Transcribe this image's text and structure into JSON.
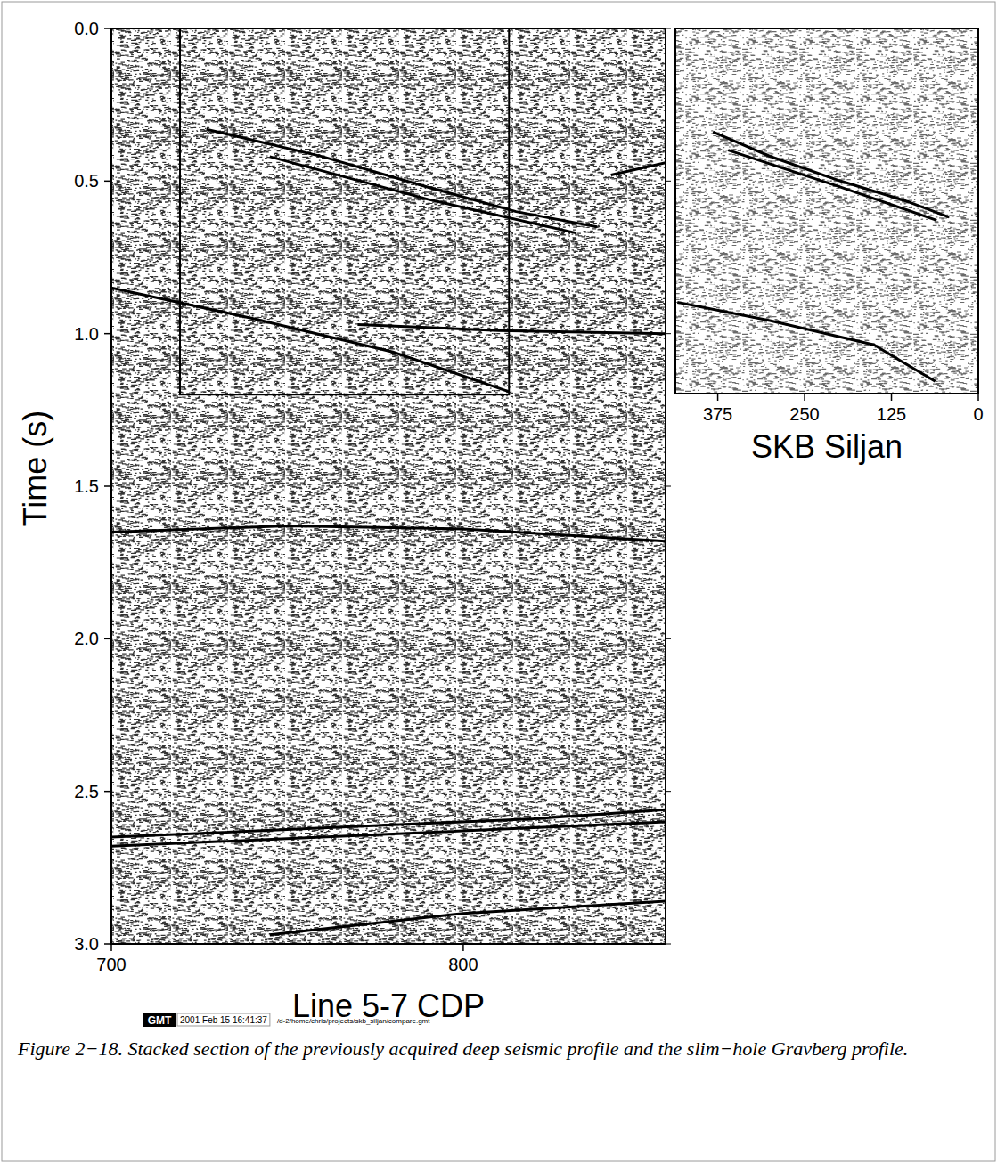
{
  "chart_data": [
    {
      "type": "line",
      "xlabel": "Line 5-7 CDP",
      "ylabel": "Time (s)",
      "xlim": [
        700,
        857.5
      ],
      "ylim": [
        3.0,
        0
      ],
      "xticks": [
        700,
        800
      ],
      "yticks": [
        {
          "value": 0,
          "label": "0.0"
        },
        {
          "value": 0.5,
          "label": "0.5"
        },
        {
          "value": 1,
          "label": "1.0"
        },
        {
          "value": 1.5,
          "label": "1.5"
        },
        {
          "value": 2,
          "label": "2.0"
        },
        {
          "value": 2.5,
          "label": "2.5"
        },
        {
          "value": 3,
          "label": "3.0"
        }
      ],
      "inset_box": {
        "xlim": [
          719.5,
          813
        ],
        "ylim": [
          1.2,
          0
        ]
      },
      "series": [
        {
          "color": "#000000",
          "x": [
            727,
            760,
            790,
            815,
            838
          ],
          "values": [
            0.33,
            0.42,
            0.52,
            0.6,
            0.65
          ]
        },
        {
          "color": "#000000",
          "x": [
            745,
            790,
            832
          ],
          "values": [
            0.42,
            0.56,
            0.67
          ]
        },
        {
          "color": "#000000",
          "x": [
            700,
            740,
            780,
            813
          ],
          "values": [
            0.85,
            0.95,
            1.06,
            1.19
          ]
        },
        {
          "color": "#000000",
          "x": [
            770,
            810,
            857.5
          ],
          "values": [
            0.97,
            0.99,
            1.0
          ]
        },
        {
          "color": "#000000",
          "x": [
            700,
            750,
            800,
            857.5
          ],
          "values": [
            1.65,
            1.63,
            1.64,
            1.68
          ]
        },
        {
          "color": "#000000",
          "x": [
            700,
            760,
            820,
            857.5
          ],
          "values": [
            2.65,
            2.62,
            2.59,
            2.56
          ]
        },
        {
          "color": "#000000",
          "x": [
            700,
            780,
            857.5
          ],
          "values": [
            2.68,
            2.64,
            2.6
          ]
        },
        {
          "color": "#000000",
          "x": [
            745,
            800,
            857.5
          ],
          "values": [
            2.97,
            2.9,
            2.86
          ]
        },
        {
          "color": "#000000",
          "x": [
            842,
            857.5
          ],
          "values": [
            0.48,
            0.44
          ]
        }
      ]
    },
    {
      "type": "line",
      "xlabel": "SKB Siljan",
      "xlim": [
        436,
        0
      ],
      "ylim": [
        1.2,
        0
      ],
      "xticks": [
        375,
        250,
        125,
        0
      ],
      "tick_labels": "x",
      "series": [
        {
          "color": "#000000",
          "x": [
            382,
            300,
            200,
            100,
            42
          ],
          "values": [
            0.34,
            0.42,
            0.5,
            0.57,
            0.62
          ]
        },
        {
          "color": "#000000",
          "x": [
            360,
            200,
            60
          ],
          "values": [
            0.4,
            0.52,
            0.63
          ]
        },
        {
          "color": "#000000",
          "x": [
            433,
            300,
            150,
            62
          ],
          "values": [
            0.9,
            0.96,
            1.04,
            1.16
          ]
        }
      ]
    }
  ],
  "caption": "Figure 2−18. Stacked section of the previously acquired deep seismic profile and the slim−hole Gravberg profile.",
  "stamp": {
    "logo": "GMT",
    "date": "2001 Feb 15 16:41:37",
    "path": "/d-2/home/chris/projects/skb_siljan/compare.gmt"
  }
}
